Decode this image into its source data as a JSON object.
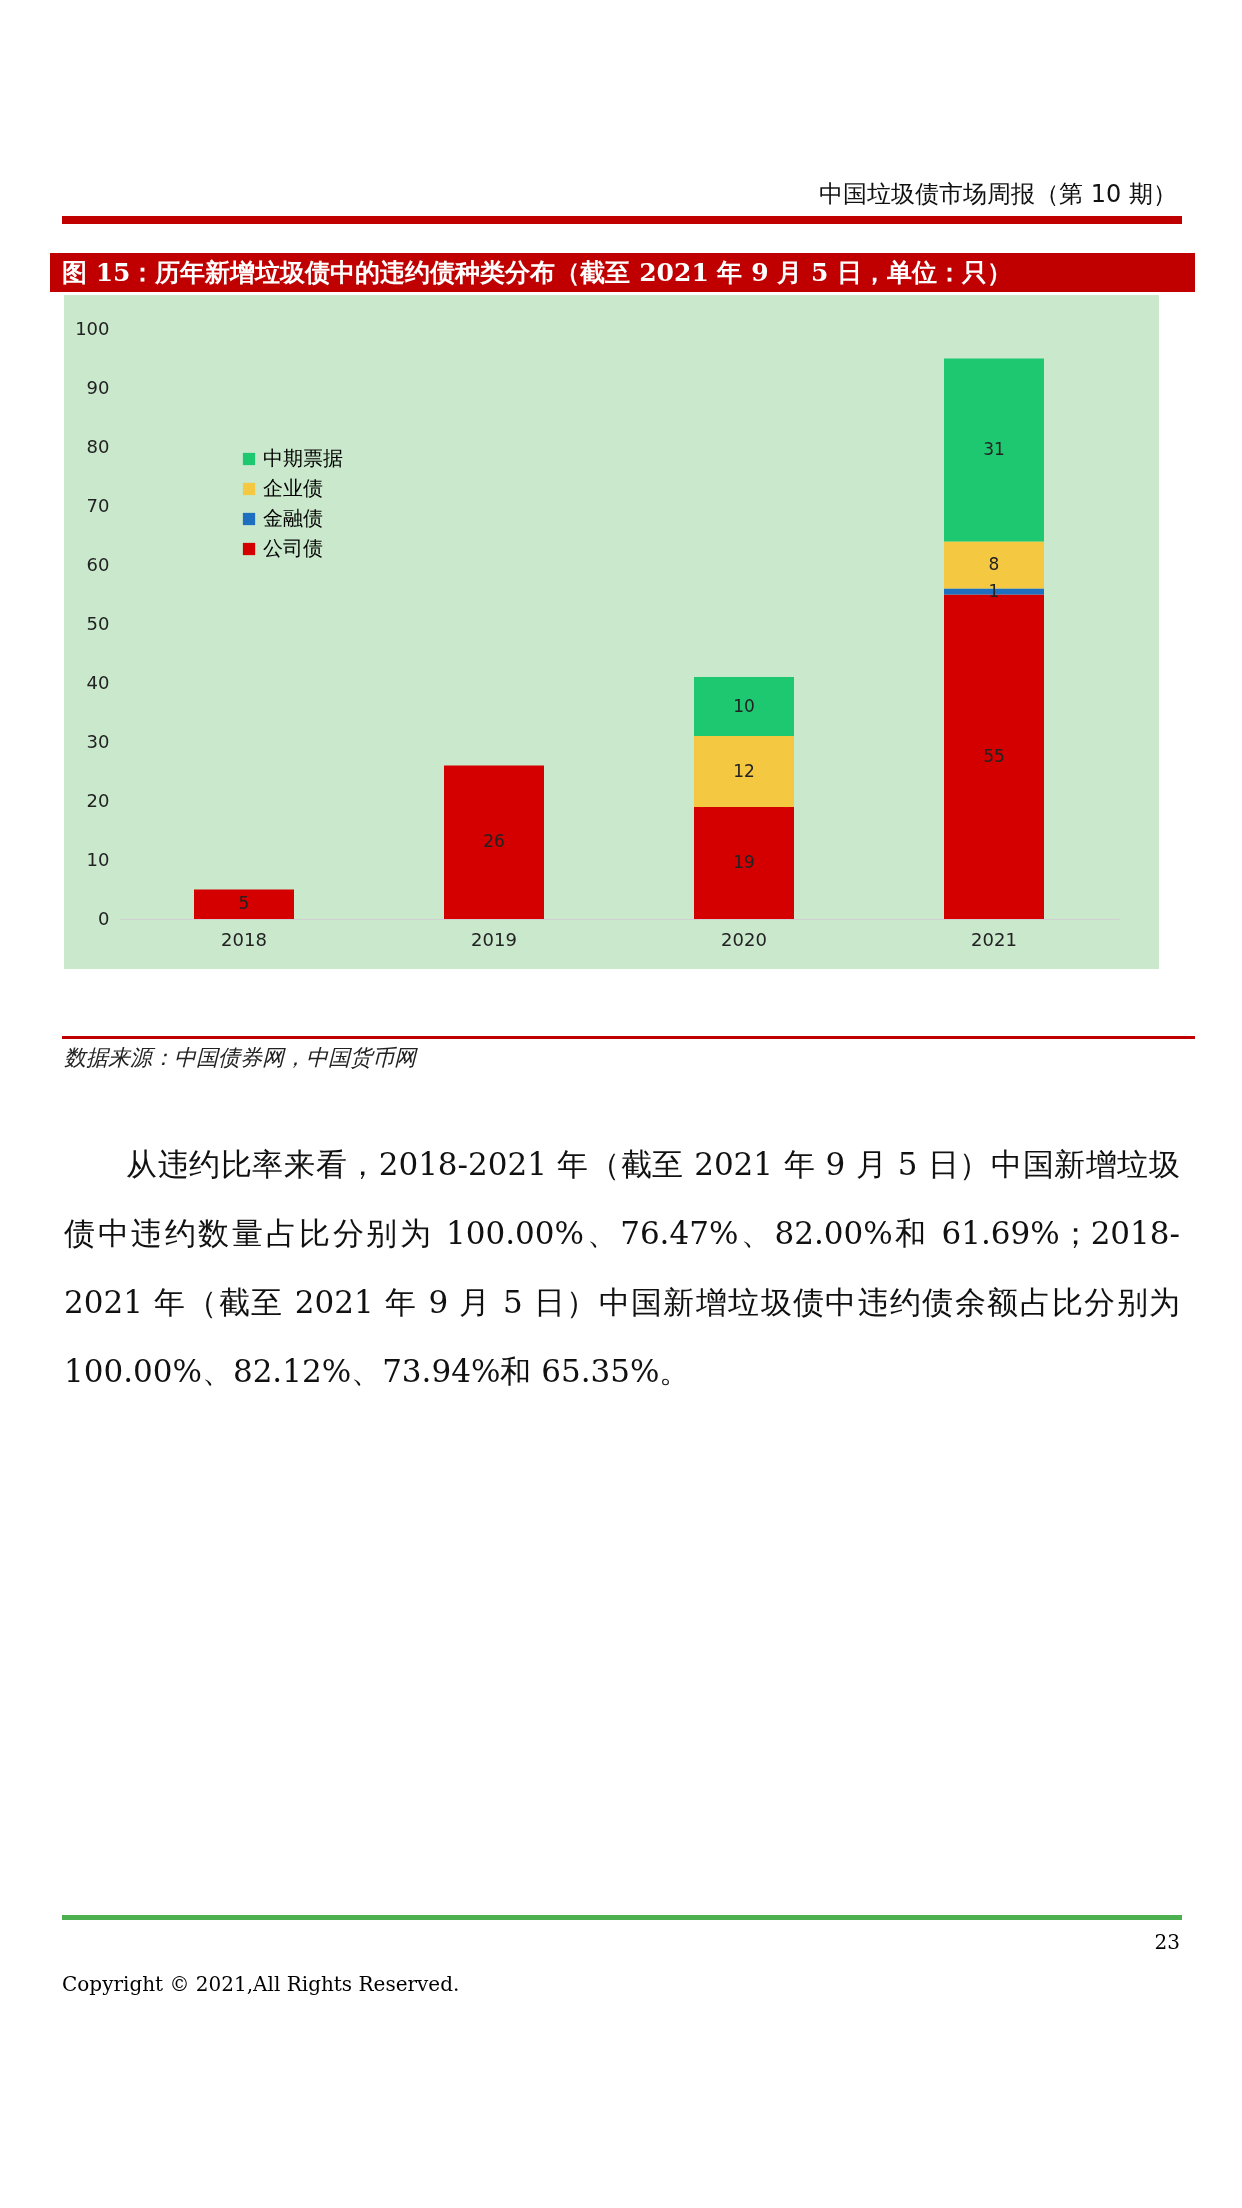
{
  "chart_data": {
    "type": "bar",
    "title": "图 15：历年新增垃圾债中的违约债种类分布（截至 2021 年 9 月 5 日，单位：只）",
    "categories": [
      "2018",
      "2019",
      "2020",
      "2021"
    ],
    "series": [
      {
        "name": "公司债",
        "color": "#d40000",
        "values": [
          5,
          26,
          19,
          55
        ]
      },
      {
        "name": "金融债",
        "color": "#1f6fc0",
        "values": [
          null,
          null,
          null,
          1
        ]
      },
      {
        "name": "企业债",
        "color": "#f5c842",
        "values": [
          null,
          null,
          12,
          8
        ]
      },
      {
        "name": "中期票据",
        "color": "#1ec870",
        "values": [
          null,
          null,
          10,
          31
        ]
      }
    ],
    "stacked": true,
    "data_labels": true,
    "legend": "top left",
    "grid": false,
    "ylim": [
      0,
      100
    ],
    "yticks": [
      0,
      10,
      20,
      30,
      40,
      50,
      60,
      70,
      80,
      90,
      100
    ],
    "annotations": [
      "中国垃圾债市场周报（第 10 期）",
      "数据来源：中国债券网，中国货币网",
      "从违约比率来看，2018-2021 年（截至 2021 年 9 月 5 日）中国新增垃圾债中违约数量占比分别为 100.00%、76.47%、82.00%和 61.69%；2018-2021 年（截至 2021 年 9 月 5 日）中国新增垃圾债中违约债余额占比分别为 100.00%、82.12%、73.94%和 65.35%。",
      "23",
      "Copyright © 2021,All Rights Reserved."
    ]
  }
}
